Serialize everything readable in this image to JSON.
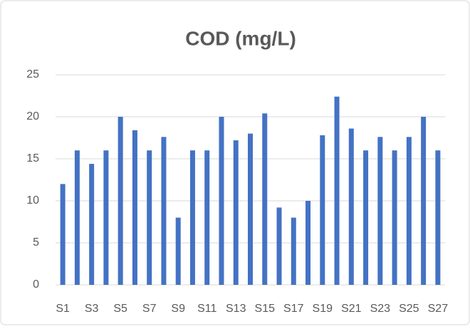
{
  "chart_data": {
    "type": "bar",
    "title": "COD (mg/L)",
    "categories": [
      "S1",
      null,
      "S3",
      null,
      "S5",
      null,
      "S7",
      null,
      "S9",
      null,
      "S11",
      null,
      "S13",
      null,
      "S15",
      null,
      "S17",
      null,
      "S19",
      null,
      "S21",
      null,
      "S23",
      null,
      "S25",
      null,
      "S27"
    ],
    "values": [
      12,
      16,
      14.4,
      16,
      20,
      18.4,
      16,
      17.6,
      8,
      16,
      16,
      20,
      17.2,
      18,
      20.4,
      9.2,
      8,
      10,
      17.8,
      22.4,
      18.6,
      16,
      17.6,
      16,
      17.6,
      20,
      16
    ],
    "color": "#4472c4",
    "ylim": [
      0,
      25
    ],
    "yticks": [
      0,
      5,
      10,
      15,
      20,
      25
    ],
    "grid": true
  }
}
